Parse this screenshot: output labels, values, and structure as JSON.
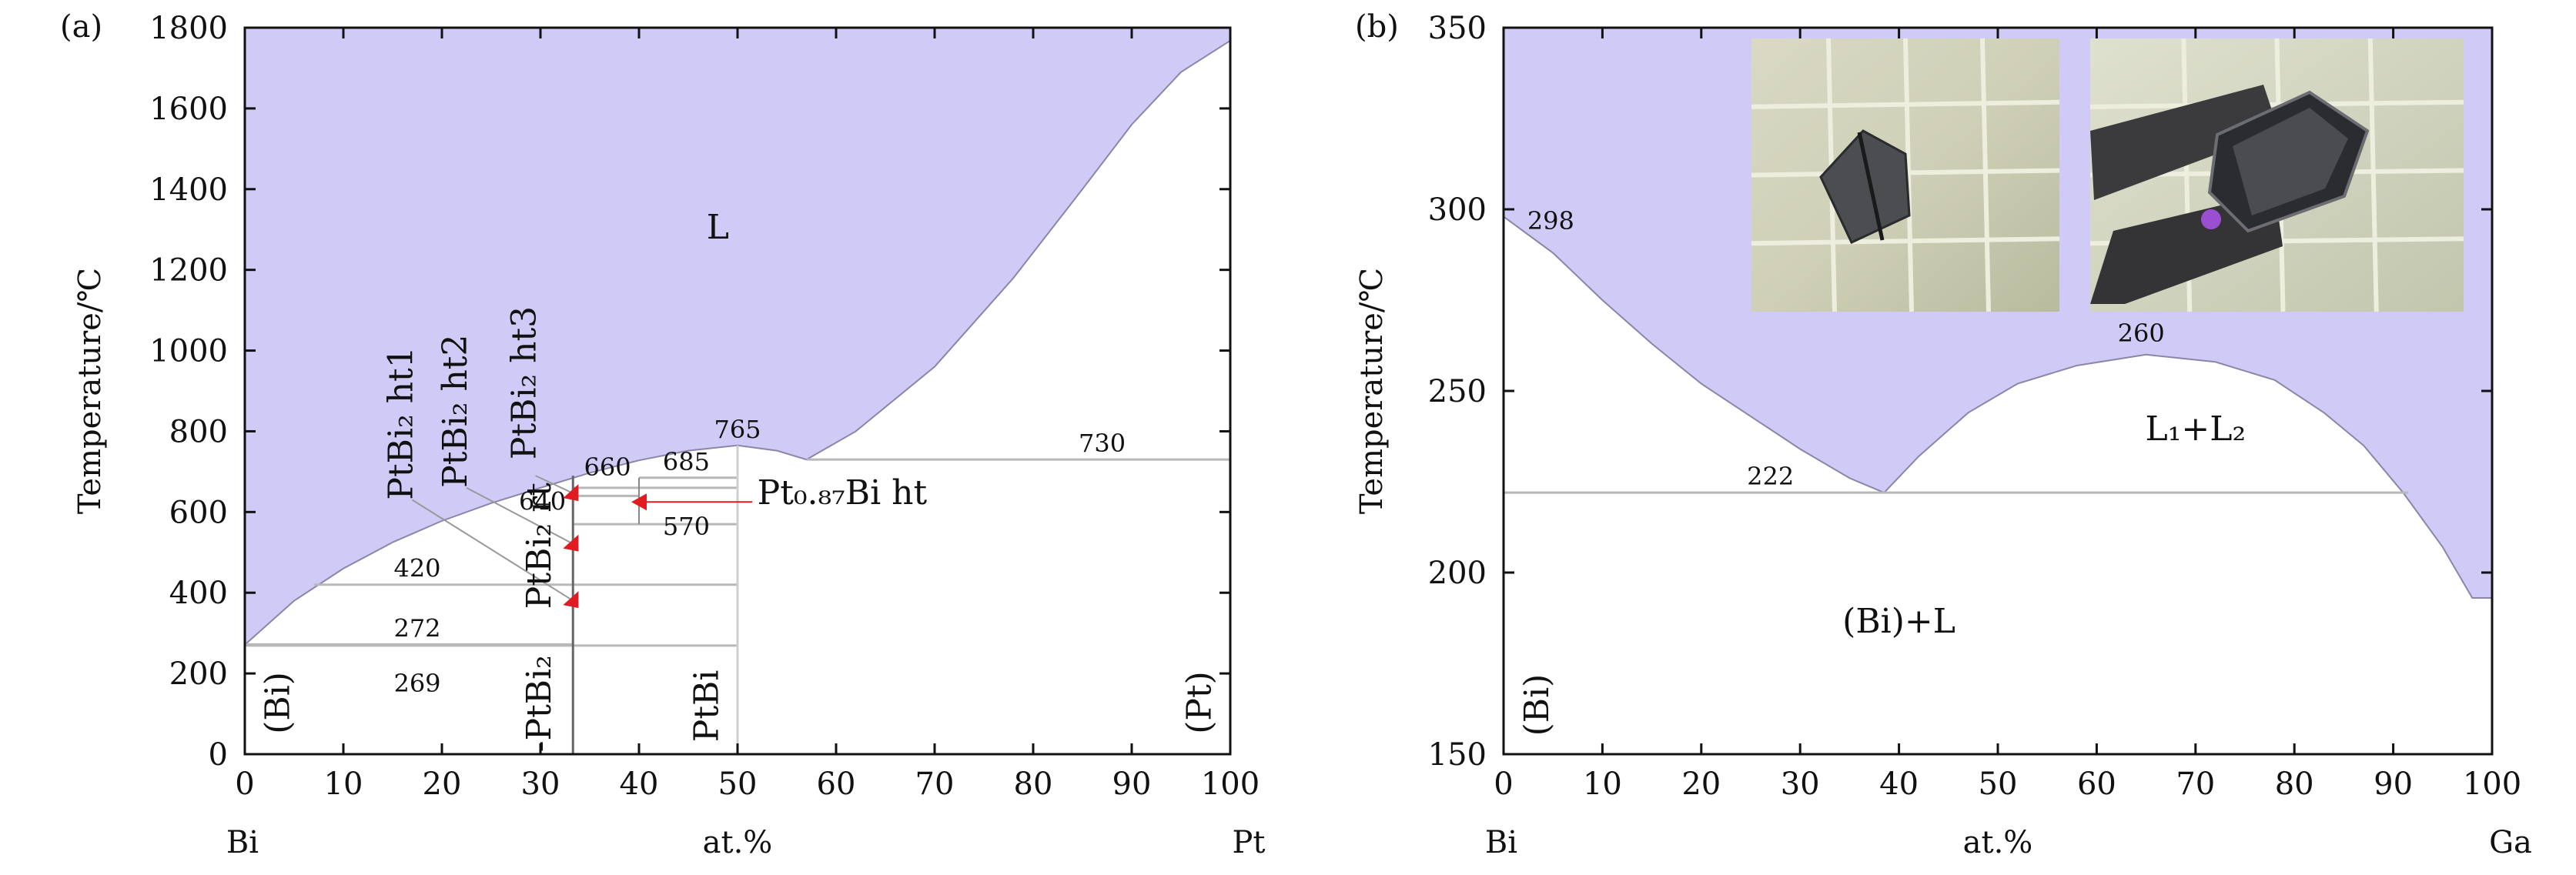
{
  "chart_data": [
    {
      "panel_label": "(a)",
      "type": "area",
      "xlabel": "at.%",
      "x_end_labels": {
        "left": "Bi",
        "right": "Pt"
      },
      "ylabel": "Temperature/℃",
      "xlim": [
        0,
        100
      ],
      "ylim": [
        0,
        1800
      ],
      "x_ticks": [
        0,
        10,
        20,
        30,
        40,
        50,
        60,
        70,
        80,
        90,
        100
      ],
      "y_ticks": [
        0,
        200,
        400,
        600,
        800,
        1000,
        1200,
        1400,
        1600,
        1800
      ],
      "liquid_region_color": "#cfcbf6",
      "liquidus": [
        {
          "x": 0,
          "y": 271
        },
        {
          "x": 5,
          "y": 380
        },
        {
          "x": 10,
          "y": 460
        },
        {
          "x": 15,
          "y": 525
        },
        {
          "x": 20,
          "y": 578
        },
        {
          "x": 25,
          "y": 622
        },
        {
          "x": 30,
          "y": 660
        },
        {
          "x": 35,
          "y": 697
        },
        {
          "x": 40,
          "y": 728
        },
        {
          "x": 45,
          "y": 752
        },
        {
          "x": 50,
          "y": 765
        },
        {
          "x": 54,
          "y": 752
        },
        {
          "x": 57,
          "y": 730
        },
        {
          "x": 62,
          "y": 800
        },
        {
          "x": 70,
          "y": 960
        },
        {
          "x": 78,
          "y": 1180
        },
        {
          "x": 85,
          "y": 1400
        },
        {
          "x": 90,
          "y": 1560
        },
        {
          "x": 95,
          "y": 1690
        },
        {
          "x": 100,
          "y": 1768
        }
      ],
      "isotherms": [
        {
          "label": "730",
          "y": 730,
          "x_from": 57,
          "x_to": 100
        },
        {
          "label": "420",
          "y": 420,
          "x_from": 7,
          "x_to": 50
        },
        {
          "label": "272",
          "y": 272,
          "x_from": 0,
          "x_to": 33.3
        },
        {
          "label": "269",
          "y": 269,
          "x_from": 0,
          "x_to": 50
        },
        {
          "label": "660",
          "y": 660,
          "x_from": 33.3,
          "x_to": 50
        },
        {
          "label": "640",
          "y": 640,
          "x_from": 33.3,
          "x_to": 40
        },
        {
          "label": "570",
          "y": 570,
          "x_from": 33.3,
          "x_to": 50
        },
        {
          "label": "685",
          "y": 685,
          "x_from": 40,
          "x_to": 50
        }
      ],
      "point_labels": [
        {
          "text": "765",
          "x": 50,
          "y": 765
        },
        {
          "text": "L",
          "x": 48,
          "y": 1300
        }
      ],
      "phase_labels": [
        {
          "text": "PtBi₂ ht1",
          "x": 17,
          "y": 630,
          "rotate": -90
        },
        {
          "text": "PtBi₂ ht2",
          "x": 22.5,
          "y": 660,
          "rotate": -90
        },
        {
          "text": "PtBi₂ ht3",
          "x": 29.5,
          "y": 730,
          "rotate": -90
        },
        {
          "text": "PtBi₂ rt",
          "x": 31,
          "y": 360,
          "rotate": -90
        },
        {
          "text": "-PtBi₂",
          "x": 31,
          "y": 5,
          "rotate": -90
        },
        {
          "text": "PtBi",
          "x": 48,
          "y": 30,
          "rotate": -90
        },
        {
          "text": "(Bi)",
          "x": 4.5,
          "y": 50,
          "rotate": -90
        },
        {
          "text": "(Pt)",
          "x": 98,
          "y": 50,
          "rotate": -90
        },
        {
          "text": "Pt₀.₈₇Bi ht",
          "x": 52,
          "y": 620,
          "rotate": 0
        }
      ],
      "markers": [
        {
          "x": 33,
          "y": 650,
          "color": "#e11b22"
        },
        {
          "x": 33,
          "y": 525,
          "color": "#e11b22"
        },
        {
          "x": 33,
          "y": 385,
          "color": "#e11b22"
        },
        {
          "x": 40,
          "y": 625,
          "color": "#e11b22"
        }
      ]
    },
    {
      "panel_label": "(b)",
      "type": "area",
      "xlabel": "at.%",
      "x_end_labels": {
        "left": "Bi",
        "right": "Ga"
      },
      "ylabel": "Temperature/℃",
      "xlim": [
        0,
        100
      ],
      "ylim": [
        150,
        350
      ],
      "x_ticks": [
        0,
        10,
        20,
        30,
        40,
        50,
        60,
        70,
        80,
        90,
        100
      ],
      "y_ticks": [
        150,
        200,
        250,
        300,
        350
      ],
      "liquid_region_color": "#cfcbf6",
      "liquidus": [
        {
          "x": 0,
          "y": 298
        },
        {
          "x": 5,
          "y": 288
        },
        {
          "x": 10,
          "y": 275
        },
        {
          "x": 15,
          "y": 263
        },
        {
          "x": 20,
          "y": 252
        },
        {
          "x": 25,
          "y": 243
        },
        {
          "x": 30,
          "y": 234
        },
        {
          "x": 35,
          "y": 226
        },
        {
          "x": 38.5,
          "y": 222
        },
        {
          "x": 42,
          "y": 232
        },
        {
          "x": 47,
          "y": 244
        },
        {
          "x": 52,
          "y": 252
        },
        {
          "x": 58,
          "y": 257
        },
        {
          "x": 65,
          "y": 260
        },
        {
          "x": 72,
          "y": 258
        },
        {
          "x": 78,
          "y": 253
        },
        {
          "x": 83,
          "y": 244
        },
        {
          "x": 87,
          "y": 235
        },
        {
          "x": 91,
          "y": 222
        },
        {
          "x": 95,
          "y": 207
        },
        {
          "x": 98,
          "y": 193
        },
        {
          "x": 100,
          "y": 193
        }
      ],
      "isotherms": [
        {
          "label": "222",
          "y": 222,
          "x_from": 0,
          "x_to": 91.5
        }
      ],
      "point_labels": [
        {
          "text": "298",
          "x": 5,
          "y": 297
        },
        {
          "text": "260",
          "x": 64.5,
          "y": 264
        },
        {
          "text": "L₁+L₂",
          "x": 70,
          "y": 239
        },
        {
          "text": "(Bi)+L",
          "x": 40,
          "y": 186
        }
      ],
      "phase_labels": [
        {
          "text": "(Bi)",
          "x": 4.5,
          "y": 155,
          "rotate": -90
        }
      ],
      "insets": [
        {
          "name": "photo-crystal-on-grid"
        },
        {
          "name": "photo-crystal-in-tweezers"
        }
      ]
    }
  ]
}
